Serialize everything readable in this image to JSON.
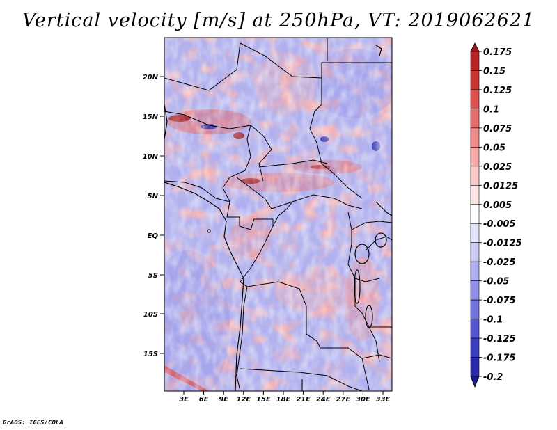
{
  "title": "Vertical velocity [m/s] at 250hPa, VT: 2019062621",
  "footer": "GrADS: IGES/COLA",
  "map": {
    "lat_labels": [
      "20N",
      "15N",
      "10N",
      "5N",
      "EQ",
      "5S",
      "10S",
      "15S"
    ],
    "lon_labels": [
      "3E",
      "6E",
      "9E",
      "12E",
      "15E",
      "18E",
      "21E",
      "24E",
      "27E",
      "30E",
      "33E"
    ]
  },
  "colorbar": {
    "labels": [
      "0.175",
      "0.15",
      "0.125",
      "0.1",
      "0.075",
      "0.05",
      "0.025",
      "0.0125",
      "0.005",
      "-0.005",
      "-0.0125",
      "-0.025",
      "-0.05",
      "-0.075",
      "-0.1",
      "-0.125",
      "-0.175",
      "-0.2"
    ],
    "colors": [
      "#a01818",
      "#b82222",
      "#cc3333",
      "#de4f4f",
      "#e86e6e",
      "#f08c8c",
      "#f6aaaa",
      "#fbcaca",
      "#fde6e6",
      "#ffffff",
      "#e4e4fb",
      "#cbcbf6",
      "#aeaef0",
      "#9090e8",
      "#7272de",
      "#5656d2",
      "#3c3cc2",
      "#2a2aaa",
      "#1c1c8c"
    ]
  }
}
